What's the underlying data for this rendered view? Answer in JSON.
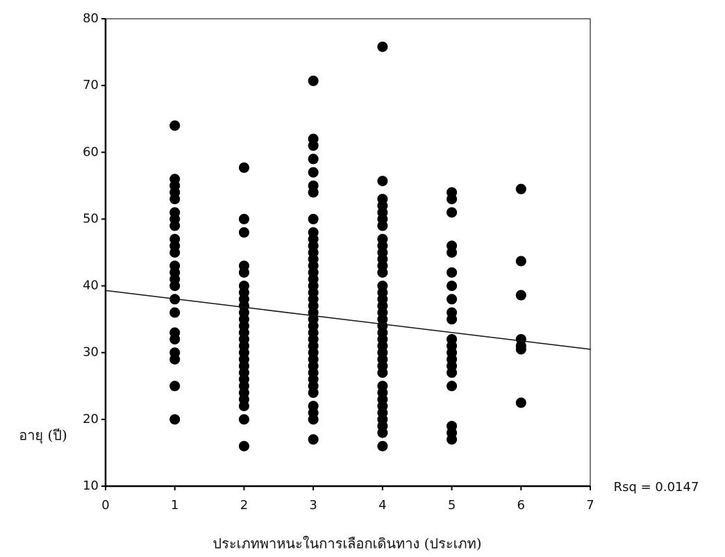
{
  "chart_data": {
    "type": "scatter",
    "x_label": "ประเภทพาหนะในการเลือกเดินทาง (ประเภท)",
    "y_label": "อายุ (ปี)",
    "annotation": "Rsq = 0.0147",
    "xlim": [
      0,
      7
    ],
    "xticks": [
      0,
      1,
      2,
      3,
      4,
      5,
      6,
      7
    ],
    "ylim": [
      10,
      80
    ],
    "yticks": [
      10,
      20,
      30,
      40,
      50,
      60,
      70,
      80
    ],
    "color": "#000000",
    "series": [
      {
        "x": [
          1,
          1,
          1,
          1,
          1,
          1,
          1,
          1,
          1,
          1,
          1,
          1,
          1,
          1,
          1,
          1,
          1,
          1,
          1,
          1,
          1,
          1,
          1
        ],
        "values": [
          64,
          56,
          55,
          54,
          53,
          51,
          50,
          49,
          47,
          46,
          45,
          43,
          42,
          41,
          40,
          38,
          36,
          33,
          32,
          30,
          29,
          25,
          20
        ]
      },
      {
        "x": [
          2,
          2,
          2,
          2,
          2,
          2,
          2,
          2,
          2,
          2,
          2,
          2,
          2,
          2,
          2,
          2,
          2,
          2,
          2,
          2,
          2,
          2,
          2,
          2,
          2,
          2
        ],
        "values": [
          57.7,
          50,
          48,
          43,
          42,
          40,
          39,
          38,
          37,
          36,
          35,
          34,
          33,
          32,
          31,
          30,
          29,
          28,
          27,
          26,
          25,
          24,
          23,
          22,
          20,
          16
        ]
      },
      {
        "x": [
          3,
          3,
          3,
          3,
          3,
          3,
          3,
          3,
          3,
          3,
          3,
          3,
          3,
          3,
          3,
          3,
          3,
          3,
          3,
          3,
          3,
          3,
          3,
          3,
          3,
          3,
          3,
          3,
          3,
          3,
          3,
          3,
          3,
          3,
          3,
          3,
          3
        ],
        "values": [
          70.7,
          62,
          61,
          59,
          57,
          55,
          54,
          50,
          48,
          47,
          46,
          45,
          44,
          43,
          42,
          41,
          40,
          39,
          38,
          37,
          36,
          35,
          34,
          33,
          32,
          31,
          30,
          29,
          28,
          27,
          26,
          25,
          24,
          22,
          21,
          20,
          17
        ]
      },
      {
        "x": [
          4,
          4,
          4,
          4,
          4,
          4,
          4,
          4,
          4,
          4,
          4,
          4,
          4,
          4,
          4,
          4,
          4,
          4,
          4,
          4,
          4,
          4,
          4,
          4,
          4,
          4,
          4,
          4,
          4,
          4,
          4,
          4,
          4,
          4,
          4,
          4
        ],
        "values": [
          75.8,
          55.7,
          53,
          52,
          51,
          50,
          49,
          47,
          46,
          45,
          44,
          43,
          42,
          40,
          39,
          38,
          37,
          36,
          35,
          34,
          33,
          32,
          31,
          30,
          29,
          28,
          27,
          25,
          24,
          23,
          22,
          21,
          20,
          19,
          18,
          16
        ]
      },
      {
        "x": [
          5,
          5,
          5,
          5,
          5,
          5,
          5,
          5,
          5,
          5,
          5,
          5,
          5,
          5,
          5,
          5,
          5,
          5,
          5,
          5
        ],
        "values": [
          54,
          53,
          51,
          46,
          45,
          42,
          40,
          38,
          36,
          35,
          32,
          31,
          30,
          29,
          28,
          27,
          25,
          19,
          18,
          17
        ]
      },
      {
        "x": [
          6,
          6,
          6,
          6,
          6,
          6,
          6
        ],
        "values": [
          54.5,
          43.7,
          38.6,
          32,
          31,
          30.5,
          22.5
        ]
      }
    ],
    "regression": {
      "x": [
        0,
        7
      ],
      "y": [
        39.3,
        30.5
      ]
    }
  }
}
